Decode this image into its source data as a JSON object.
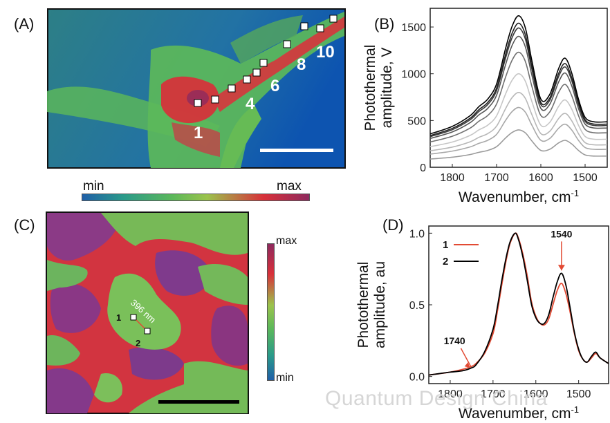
{
  "panels": {
    "A": {
      "label": "(A)",
      "markers": [
        "1",
        "4",
        "6",
        "8",
        "10"
      ],
      "colorbar": {
        "min": "min",
        "max": "max"
      }
    },
    "B": {
      "label": "(B)"
    },
    "C": {
      "label": "(C)",
      "point_labels": [
        "1",
        "2"
      ],
      "distance_label": "396 nm",
      "colorbar": {
        "max": "max",
        "min": "min"
      }
    },
    "D": {
      "label": "(D)"
    }
  },
  "watermark": "Quantum Design China",
  "colors": {
    "series_B": [
      "#9a9a9a",
      "#a8a8a8",
      "#b7b7b7",
      "#c6c6c6",
      "#707070",
      "#555555",
      "#3a3a3a",
      "#222222",
      "#000000"
    ],
    "series_D_1": "#e24a33",
    "series_D_2": "#000000",
    "annotation": "#e24a33"
  },
  "chart_data": [
    {
      "id": "B",
      "type": "line",
      "xlabel": "Wavenumber, cm",
      "xlabel_sup": "-1",
      "ylabel": "Photothermal amplitude, V",
      "xlim": [
        1850,
        1450
      ],
      "ylim": [
        0,
        1700
      ],
      "xticks": [
        1800,
        1700,
        1600,
        1500
      ],
      "yticks": [
        0,
        500,
        1000,
        1500
      ],
      "x": [
        1850,
        1800,
        1760,
        1740,
        1720,
        1700,
        1680,
        1665,
        1650,
        1635,
        1620,
        1600,
        1580,
        1560,
        1545,
        1530,
        1515,
        1500,
        1480,
        1450
      ],
      "shape": [
        0.22,
        0.27,
        0.34,
        0.4,
        0.45,
        0.55,
        0.78,
        0.93,
        1.0,
        0.92,
        0.7,
        0.45,
        0.48,
        0.65,
        0.72,
        0.62,
        0.45,
        0.33,
        0.3,
        0.3
      ],
      "series_peaks": [
        400,
        640,
        800,
        1000,
        1230,
        1400,
        1490,
        1540,
        1620
      ]
    },
    {
      "id": "D",
      "type": "line",
      "xlabel": "Wavenumber, cm",
      "xlabel_sup": "-1",
      "ylabel": "Photothermal amplitude, au",
      "xlim": [
        1850,
        1430
      ],
      "ylim": [
        -0.05,
        1.05
      ],
      "xticks": [
        1800,
        1700,
        1600,
        1500
      ],
      "yticks": [
        0.0,
        0.5,
        1.0
      ],
      "ytick_labels": [
        "0.0",
        "0.5",
        "1.0"
      ],
      "legend": [
        "1",
        "2"
      ],
      "annotations": [
        "1740",
        "1540"
      ],
      "series": [
        {
          "name": "1",
          "x": [
            1850,
            1800,
            1770,
            1750,
            1740,
            1720,
            1700,
            1690,
            1680,
            1670,
            1660,
            1648,
            1640,
            1630,
            1620,
            1610,
            1600,
            1590,
            1580,
            1570,
            1560,
            1550,
            1540,
            1530,
            1520,
            1510,
            1500,
            1490,
            1480,
            1470,
            1460,
            1450,
            1430
          ],
          "y": [
            0.01,
            0.03,
            0.05,
            0.07,
            0.09,
            0.16,
            0.3,
            0.45,
            0.63,
            0.8,
            0.93,
            1.0,
            0.96,
            0.85,
            0.7,
            0.52,
            0.42,
            0.37,
            0.36,
            0.4,
            0.5,
            0.6,
            0.65,
            0.58,
            0.45,
            0.3,
            0.18,
            0.12,
            0.1,
            0.13,
            0.16,
            0.13,
            0.09
          ]
        },
        {
          "name": "2",
          "x": [
            1850,
            1800,
            1770,
            1750,
            1740,
            1720,
            1700,
            1690,
            1680,
            1670,
            1660,
            1648,
            1640,
            1630,
            1620,
            1610,
            1600,
            1590,
            1580,
            1570,
            1560,
            1550,
            1540,
            1530,
            1520,
            1510,
            1500,
            1490,
            1480,
            1470,
            1460,
            1450,
            1430
          ],
          "y": [
            0.01,
            0.03,
            0.04,
            0.06,
            0.08,
            0.17,
            0.33,
            0.48,
            0.66,
            0.82,
            0.94,
            1.0,
            0.95,
            0.83,
            0.67,
            0.5,
            0.41,
            0.37,
            0.37,
            0.43,
            0.55,
            0.66,
            0.72,
            0.64,
            0.48,
            0.31,
            0.19,
            0.12,
            0.1,
            0.14,
            0.17,
            0.13,
            0.09
          ]
        }
      ]
    }
  ]
}
